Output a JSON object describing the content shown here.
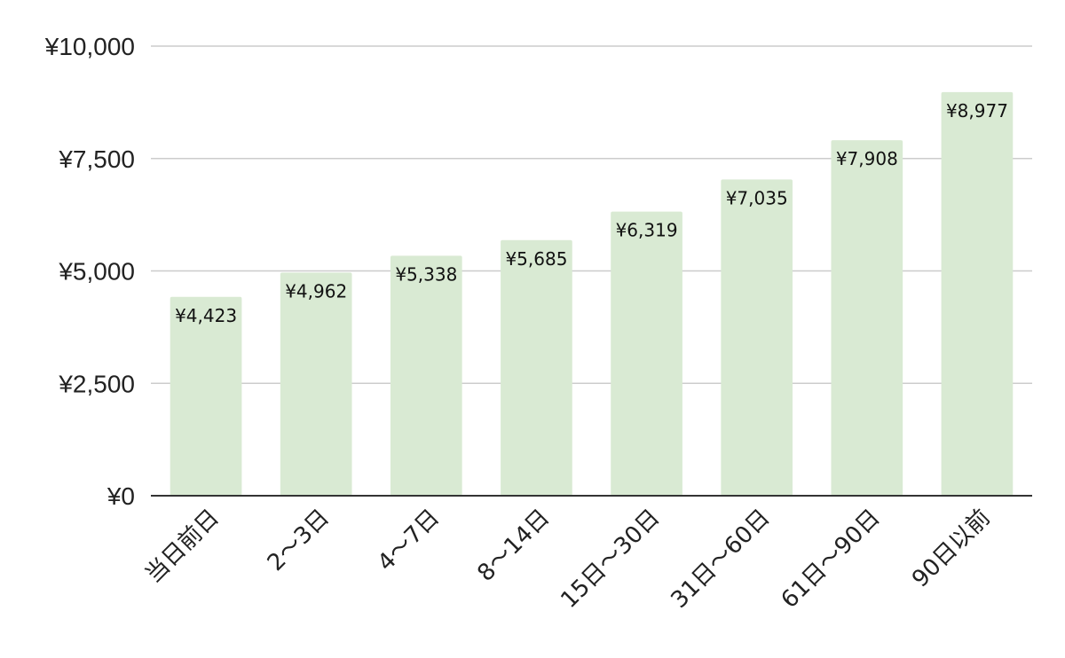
{
  "chart_data": {
    "type": "bar",
    "title": "",
    "xlabel": "",
    "ylabel": "",
    "categories": [
      "当日前日",
      "2〜3日",
      "4〜7日",
      "8〜14日",
      "15日〜30日",
      "31日〜60日",
      "61日〜90日",
      "90日以前"
    ],
    "values": [
      4423,
      4962,
      5338,
      5685,
      6319,
      7035,
      7908,
      8977
    ],
    "value_labels": [
      "¥4,423",
      "¥4,962",
      "¥5,338",
      "¥5,685",
      "¥6,319",
      "¥7,035",
      "¥7,908",
      "¥8,977"
    ],
    "ylim": [
      0,
      10000
    ],
    "yticks": [
      0,
      2500,
      5000,
      7500,
      10000
    ],
    "ytick_labels": [
      "¥0",
      "¥2,500",
      "¥5,000",
      "¥7,500",
      "¥10,000"
    ],
    "grid": true,
    "legend": "none",
    "bar_color": "#d9ead3",
    "grid_color": "#cccccc",
    "axis_color": "#333333"
  }
}
